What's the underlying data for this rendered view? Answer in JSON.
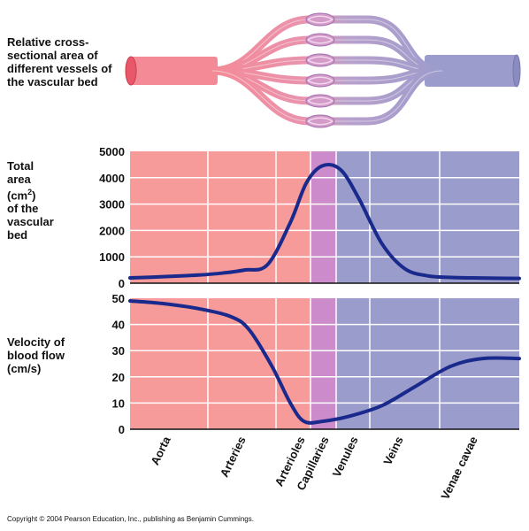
{
  "labels": {
    "vessels": "Relative cross-sectional area of different vessels of the vascular bed",
    "area_line1": "Total",
    "area_line2": "area",
    "area_line3a": "(cm",
    "area_line3sup": "2",
    "area_line3b": ")",
    "area_line4": "of the",
    "area_line5": "vascular",
    "area_line6": "bed",
    "velocity": "Velocity of blood flow (cm/s)"
  },
  "copyright": "Copyright © 2004 Pearson Education, Inc., publishing as Benjamin Cummings.",
  "colors": {
    "arterial": "#f79a9a",
    "capillary": "#cc8ccc",
    "venous": "#9a9ccc",
    "curve": "#1a2a8c"
  },
  "chart_data": [
    {
      "type": "line",
      "ylabel": "Total area (cm2) of the vascular bed",
      "ylim": [
        0,
        5000
      ],
      "yticks": [
        "5000",
        "4000",
        "3000",
        "2000",
        "1000",
        "0"
      ],
      "grid": true,
      "x": [
        0,
        0.5,
        1,
        1.5,
        2,
        2.5,
        3,
        3.5,
        3.85,
        4.2,
        4.6,
        5,
        5.5,
        6,
        6.5,
        7,
        7.5,
        8,
        8.5
      ],
      "values": [
        200,
        230,
        270,
        310,
        380,
        500,
        700,
        2300,
        3800,
        4450,
        4300,
        3200,
        1500,
        550,
        280,
        220,
        200,
        190,
        180
      ]
    },
    {
      "type": "line",
      "ylabel": "Velocity of blood flow (cm/s)",
      "ylim": [
        0,
        50
      ],
      "yticks": [
        "50",
        "40",
        "30",
        "20",
        "10",
        "0"
      ],
      "grid": true,
      "x": [
        0,
        0.7,
        1.5,
        2.2,
        2.6,
        3.1,
        3.5,
        3.8,
        4.2,
        4.8,
        5.5,
        6.2,
        7,
        7.7,
        8.5
      ],
      "values": [
        49,
        48,
        46,
        43,
        38,
        24,
        10,
        3,
        3,
        5,
        9,
        16,
        24,
        27,
        27
      ]
    }
  ],
  "categories": [
    "Aorta",
    "Arteries",
    "Arterioles",
    "Capillaries",
    "Venules",
    "Veins",
    "Venae cavae"
  ]
}
